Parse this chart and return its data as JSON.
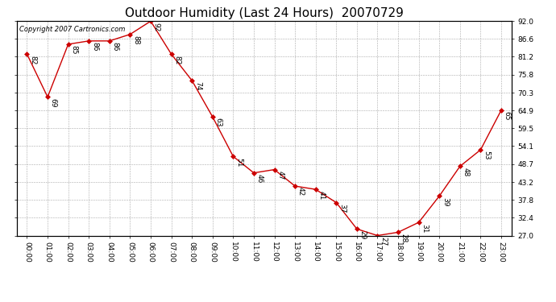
{
  "title": "Outdoor Humidity (Last 24 Hours)  20070729",
  "copyright": "Copyright 2007 Cartronics.com",
  "hours": [
    "00:00",
    "01:00",
    "02:00",
    "03:00",
    "04:00",
    "05:00",
    "06:00",
    "07:00",
    "08:00",
    "09:00",
    "10:00",
    "11:00",
    "12:00",
    "13:00",
    "14:00",
    "15:00",
    "16:00",
    "17:00",
    "18:00",
    "19:00",
    "20:00",
    "21:00",
    "22:00",
    "23:00"
  ],
  "values": [
    82,
    69,
    85,
    86,
    86,
    88,
    92,
    82,
    74,
    63,
    51,
    46,
    47,
    42,
    41,
    37,
    29,
    27,
    28,
    31,
    39,
    48,
    53,
    65
  ],
  "line_color": "#cc0000",
  "marker": "D",
  "marker_color": "#cc0000",
  "bg_color": "#ffffff",
  "grid_color": "#aaaaaa",
  "ylim": [
    27.0,
    92.0
  ],
  "yticks": [
    27.0,
    32.4,
    37.8,
    43.2,
    48.7,
    54.1,
    59.5,
    64.9,
    70.3,
    75.8,
    81.2,
    86.6,
    92.0
  ],
  "title_fontsize": 11,
  "label_fontsize": 6.5,
  "annot_fontsize": 6.5,
  "copyright_fontsize": 6,
  "tick_label_fontsize": 6.5
}
